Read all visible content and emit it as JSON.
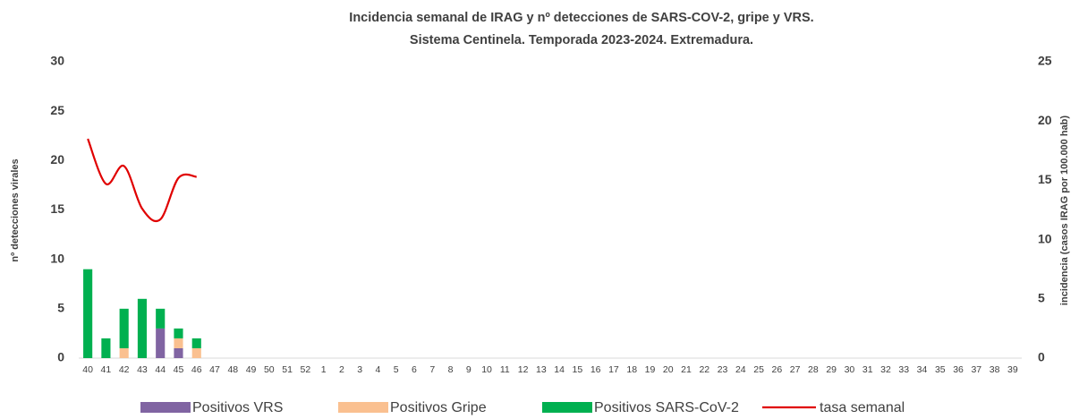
{
  "chart_data": {
    "type": "bar",
    "title": "Incidencia semanal de IRAG y nº detecciones de SARS-COV-2, gripe y VRS.",
    "subtitle": "Sistema Centinela. Temporada 2023-2024. Extremadura.",
    "y_label": "nº detecciones virales",
    "y2_label": "incidencia (casos IRAG por 100.000 hab)",
    "stacked": true,
    "categories": [
      "40",
      "41",
      "42",
      "43",
      "44",
      "45",
      "46",
      "47",
      "48",
      "49",
      "50",
      "51",
      "52",
      "1",
      "2",
      "3",
      "4",
      "5",
      "6",
      "7",
      "8",
      "9",
      "10",
      "11",
      "12",
      "13",
      "14",
      "15",
      "16",
      "17",
      "18",
      "19",
      "20",
      "21",
      "22",
      "23",
      "24",
      "25",
      "26",
      "27",
      "28",
      "29",
      "30",
      "31",
      "32",
      "33",
      "34",
      "35",
      "36",
      "37",
      "38",
      "39"
    ],
    "series": [
      {
        "name": "Positivos VRS",
        "color": "#8064a2",
        "type": "bar",
        "values": [
          0,
          0,
          0,
          0,
          3,
          1,
          0,
          null,
          null,
          null,
          null,
          null,
          null,
          null,
          null,
          null,
          null,
          null,
          null,
          null,
          null,
          null,
          null,
          null,
          null,
          null,
          null,
          null,
          null,
          null,
          null,
          null,
          null,
          null,
          null,
          null,
          null,
          null,
          null,
          null,
          null,
          null,
          null,
          null,
          null,
          null,
          null,
          null,
          null,
          null,
          null,
          null
        ]
      },
      {
        "name": "Positivos Gripe",
        "color": "#fac090",
        "type": "bar",
        "values": [
          0,
          0,
          1,
          0,
          0,
          1,
          1,
          null,
          null,
          null,
          null,
          null,
          null,
          null,
          null,
          null,
          null,
          null,
          null,
          null,
          null,
          null,
          null,
          null,
          null,
          null,
          null,
          null,
          null,
          null,
          null,
          null,
          null,
          null,
          null,
          null,
          null,
          null,
          null,
          null,
          null,
          null,
          null,
          null,
          null,
          null,
          null,
          null,
          null,
          null,
          null,
          null
        ]
      },
      {
        "name": "Positivos SARS-CoV-2",
        "color": "#00b050",
        "type": "bar",
        "values": [
          9,
          2,
          4,
          6,
          2,
          1,
          1,
          null,
          null,
          null,
          null,
          null,
          null,
          null,
          null,
          null,
          null,
          null,
          null,
          null,
          null,
          null,
          null,
          null,
          null,
          null,
          null,
          null,
          null,
          null,
          null,
          null,
          null,
          null,
          null,
          null,
          null,
          null,
          null,
          null,
          null,
          null,
          null,
          null,
          null,
          null,
          null,
          null,
          null,
          null,
          null,
          null
        ]
      },
      {
        "name": "tasa semanal",
        "color": "#e00000",
        "type": "line",
        "axis": "y2",
        "values": [
          18.5,
          14.7,
          16.2,
          12.6,
          11.7,
          15.2,
          15.3,
          null,
          null,
          null,
          null,
          null,
          null,
          null,
          null,
          null,
          null,
          null,
          null,
          null,
          null,
          null,
          null,
          null,
          null,
          null,
          null,
          null,
          null,
          null,
          null,
          null,
          null,
          null,
          null,
          null,
          null,
          null,
          null,
          null,
          null,
          null,
          null,
          null,
          null,
          null,
          null,
          null,
          null,
          null,
          null,
          null
        ]
      }
    ],
    "ylim": [
      0,
      30
    ],
    "yticks": [
      0,
      5,
      10,
      15,
      20,
      25,
      30
    ],
    "y2lim": [
      0,
      25
    ],
    "y2ticks": [
      0,
      5,
      10,
      15,
      20,
      25
    ],
    "legend": "bottom"
  }
}
